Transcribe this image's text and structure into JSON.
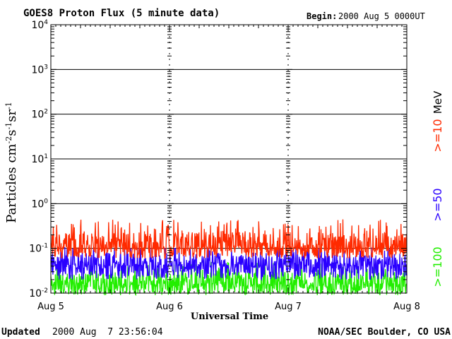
{
  "header": {
    "title": "GOES8 Proton Flux (5 minute data)",
    "begin_label": "Begin:",
    "begin_value": "2000 Aug 5 0000UT"
  },
  "footer": {
    "updated_label": "Updated",
    "updated_value": "2000 Aug  7 23:56:04",
    "credit": "NOAA/SEC Boulder, CO USA"
  },
  "axes": {
    "ylabel": "Particles cm",
    "ylabel_units": [
      "-2",
      "s",
      "-1",
      "sr",
      "-1"
    ],
    "xlabel": "Universal Time",
    "y_ticks": [
      {
        "base": "10",
        "exp": "-2"
      },
      {
        "base": "10",
        "exp": "-1"
      },
      {
        "base": "10",
        "exp": "0"
      },
      {
        "base": "10",
        "exp": "1"
      },
      {
        "base": "10",
        "exp": "2"
      },
      {
        "base": "10",
        "exp": "3"
      },
      {
        "base": "10",
        "exp": "4"
      }
    ],
    "x_ticks": [
      "Aug 5",
      "Aug 6",
      "Aug 7",
      "Aug 8"
    ]
  },
  "legend": {
    "unit": "MeV",
    "items": [
      {
        "label": ">=10",
        "color": "#ff2a00"
      },
      {
        "label": ">=50",
        "color": "#2a00ff"
      },
      {
        "label": ">=100",
        "color": "#22ee00"
      }
    ]
  },
  "chart_data": {
    "type": "line",
    "title": "GOES8 Proton Flux (5 minute data)",
    "xlabel": "Universal Time",
    "ylabel": "Particles cm-2 s-1 sr-1",
    "y_scale": "log",
    "ylim": [
      0.01,
      10000
    ],
    "xlim": [
      "2000-08-05 00:00",
      "2000-08-08 00:00"
    ],
    "grid": true,
    "legend_position": "right",
    "series": [
      {
        "name": ">=10 MeV",
        "color": "#ff2a00",
        "typical_value": 0.1,
        "min": 0.06,
        "max": 0.45
      },
      {
        "name": ">=50 MeV",
        "color": "#2a00ff",
        "typical_value": 0.04,
        "min": 0.02,
        "max": 0.11
      },
      {
        "name": ">=100 MeV",
        "color": "#22ee00",
        "typical_value": 0.015,
        "min": 0.009,
        "max": 0.05
      }
    ]
  }
}
